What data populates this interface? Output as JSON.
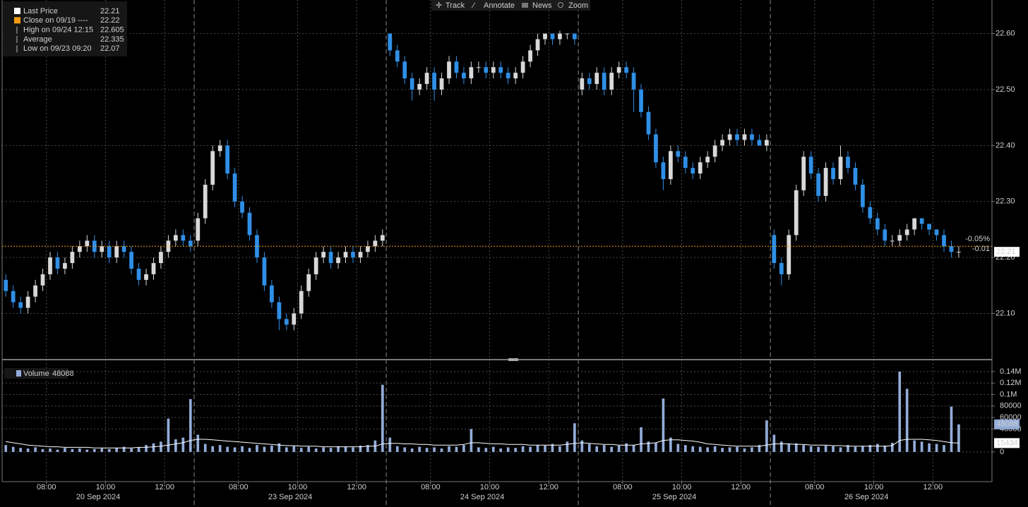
{
  "toolbar": {
    "items": [
      "Track",
      "Annotate",
      "News",
      "Zoom"
    ]
  },
  "chart_data": [
    {
      "type": "candlestick",
      "legend": [
        {
          "label": "Last Price",
          "value": 22.21,
          "color": "#ffffff"
        },
        {
          "label": "Close on 09/19 ----",
          "value": 22.22,
          "color": "#f39c12"
        },
        {
          "label": "High on 09/24 12:15",
          "value": 22.605,
          "color": "#bbbbbb"
        },
        {
          "label": "Average",
          "value": 22.335,
          "color": "#bbbbbb"
        },
        {
          "label": "Low on 09/23 09:20",
          "value": 22.07,
          "color": "#bbbbbb"
        }
      ],
      "annotations": [
        "-0.05%",
        "-0.01"
      ],
      "up_color": "#d8d8d8",
      "down_color": "#2f8fe6",
      "candles": [
        [
          22.16,
          22.17,
          22.13,
          22.14
        ],
        [
          22.14,
          22.15,
          22.11,
          22.12
        ],
        [
          22.12,
          22.13,
          22.1,
          22.11
        ],
        [
          22.11,
          22.14,
          22.1,
          22.13
        ],
        [
          22.13,
          22.16,
          22.12,
          22.15
        ],
        [
          22.15,
          22.18,
          22.14,
          22.17
        ],
        [
          22.17,
          22.21,
          22.16,
          22.2
        ],
        [
          22.2,
          22.21,
          22.17,
          22.18
        ],
        [
          22.18,
          22.2,
          22.17,
          22.19
        ],
        [
          22.19,
          22.22,
          22.18,
          22.21
        ],
        [
          22.21,
          22.23,
          22.2,
          22.22
        ],
        [
          22.22,
          22.24,
          22.21,
          22.23
        ],
        [
          22.23,
          22.24,
          22.2,
          22.21
        ],
        [
          22.21,
          22.23,
          22.2,
          22.22
        ],
        [
          22.22,
          22.23,
          22.19,
          22.2
        ],
        [
          22.2,
          22.23,
          22.19,
          22.22
        ],
        [
          22.22,
          22.23,
          22.2,
          22.21
        ],
        [
          22.21,
          22.22,
          22.17,
          22.18
        ],
        [
          22.18,
          22.19,
          22.15,
          22.16
        ],
        [
          22.16,
          22.18,
          22.15,
          22.17
        ],
        [
          22.17,
          22.2,
          22.16,
          22.19
        ],
        [
          22.19,
          22.22,
          22.18,
          22.21
        ],
        [
          22.21,
          22.24,
          22.2,
          22.23
        ],
        [
          22.23,
          22.25,
          22.22,
          22.24
        ],
        [
          22.24,
          22.25,
          22.22,
          22.23
        ],
        [
          22.23,
          22.24,
          22.21,
          22.22
        ],
        [
          22.23,
          22.28,
          22.22,
          22.27
        ],
        [
          22.27,
          22.34,
          22.26,
          22.33
        ],
        [
          22.33,
          22.4,
          22.32,
          22.39
        ],
        [
          22.39,
          22.41,
          22.38,
          22.4
        ],
        [
          22.4,
          22.41,
          22.34,
          22.35
        ],
        [
          22.35,
          22.36,
          22.29,
          22.3
        ],
        [
          22.3,
          22.31,
          22.27,
          22.28
        ],
        [
          22.28,
          22.29,
          22.23,
          22.24
        ],
        [
          22.24,
          22.25,
          22.19,
          22.2
        ],
        [
          22.2,
          22.21,
          22.14,
          22.15
        ],
        [
          22.15,
          22.16,
          22.11,
          22.12
        ],
        [
          22.12,
          22.13,
          22.07,
          22.09
        ],
        [
          22.09,
          22.1,
          22.07,
          22.08
        ],
        [
          22.08,
          22.11,
          22.07,
          22.1
        ],
        [
          22.1,
          22.15,
          22.09,
          22.14
        ],
        [
          22.14,
          22.18,
          22.13,
          22.17
        ],
        [
          22.17,
          22.21,
          22.16,
          22.2
        ],
        [
          22.2,
          22.22,
          22.19,
          22.21
        ],
        [
          22.21,
          22.22,
          22.18,
          22.19
        ],
        [
          22.19,
          22.21,
          22.18,
          22.2
        ],
        [
          22.2,
          22.22,
          22.19,
          22.21
        ],
        [
          22.21,
          22.22,
          22.19,
          22.2
        ],
        [
          22.2,
          22.22,
          22.19,
          22.21
        ],
        [
          22.21,
          22.23,
          22.2,
          22.22
        ],
        [
          22.22,
          22.24,
          22.21,
          22.23
        ],
        [
          22.23,
          22.25,
          22.22,
          22.24
        ],
        [
          22.6,
          22.6,
          22.56,
          22.57
        ],
        [
          22.57,
          22.58,
          22.54,
          22.55
        ],
        [
          22.55,
          22.56,
          22.51,
          22.52
        ],
        [
          22.52,
          22.53,
          22.48,
          22.5
        ],
        [
          22.5,
          22.52,
          22.49,
          22.51
        ],
        [
          22.51,
          22.54,
          22.5,
          22.53
        ],
        [
          22.53,
          22.54,
          22.48,
          22.5
        ],
        [
          22.5,
          22.53,
          22.49,
          22.52
        ],
        [
          22.52,
          22.56,
          22.51,
          22.55
        ],
        [
          22.55,
          22.56,
          22.52,
          22.53
        ],
        [
          22.53,
          22.54,
          22.51,
          22.52
        ],
        [
          22.52,
          22.55,
          22.51,
          22.54
        ],
        [
          22.54,
          22.55,
          22.53,
          22.54
        ],
        [
          22.54,
          22.55,
          22.52,
          22.53
        ],
        [
          22.53,
          22.55,
          22.52,
          22.54
        ],
        [
          22.54,
          22.55,
          22.52,
          22.53
        ],
        [
          22.53,
          22.54,
          22.51,
          22.52
        ],
        [
          22.52,
          22.54,
          22.51,
          22.53
        ],
        [
          22.53,
          22.56,
          22.52,
          22.55
        ],
        [
          22.55,
          22.58,
          22.54,
          22.57
        ],
        [
          22.57,
          22.6,
          22.56,
          22.59
        ],
        [
          22.59,
          22.6,
          22.58,
          22.6
        ],
        [
          22.6,
          22.6,
          22.58,
          22.59
        ],
        [
          22.59,
          22.605,
          22.58,
          22.6
        ],
        [
          22.6,
          22.6,
          22.59,
          22.6
        ],
        [
          22.6,
          22.6,
          22.58,
          22.59
        ],
        [
          22.5,
          22.53,
          22.49,
          22.52
        ],
        [
          22.52,
          22.53,
          22.5,
          22.51
        ],
        [
          22.51,
          22.54,
          22.5,
          22.53
        ],
        [
          22.53,
          22.54,
          22.49,
          22.5
        ],
        [
          22.5,
          22.54,
          22.49,
          22.53
        ],
        [
          22.53,
          22.55,
          22.52,
          22.54
        ],
        [
          22.54,
          22.55,
          22.52,
          22.53
        ],
        [
          22.53,
          22.54,
          22.46,
          22.5
        ],
        [
          22.5,
          22.51,
          22.45,
          22.46
        ],
        [
          22.46,
          22.47,
          22.41,
          22.42
        ],
        [
          22.42,
          22.43,
          22.36,
          22.37
        ],
        [
          22.37,
          22.38,
          22.32,
          22.34
        ],
        [
          22.34,
          22.4,
          22.33,
          22.39
        ],
        [
          22.39,
          22.4,
          22.37,
          22.38
        ],
        [
          22.38,
          22.39,
          22.35,
          22.36
        ],
        [
          22.36,
          22.37,
          22.34,
          22.35
        ],
        [
          22.35,
          22.38,
          22.34,
          22.37
        ],
        [
          22.37,
          22.39,
          22.36,
          22.38
        ],
        [
          22.38,
          22.41,
          22.37,
          22.4
        ],
        [
          22.4,
          22.42,
          22.39,
          22.41
        ],
        [
          22.41,
          22.43,
          22.4,
          22.42
        ],
        [
          22.42,
          22.43,
          22.4,
          22.41
        ],
        [
          22.41,
          22.43,
          22.4,
          22.42
        ],
        [
          22.42,
          22.43,
          22.4,
          22.41
        ],
        [
          22.41,
          22.42,
          22.4,
          22.4
        ],
        [
          22.4,
          22.42,
          22.39,
          22.41
        ],
        [
          22.24,
          22.25,
          22.18,
          22.19
        ],
        [
          22.19,
          22.2,
          22.15,
          22.17
        ],
        [
          22.17,
          22.25,
          22.16,
          22.24
        ],
        [
          22.24,
          22.33,
          22.23,
          22.32
        ],
        [
          22.32,
          22.39,
          22.31,
          22.38
        ],
        [
          22.38,
          22.39,
          22.34,
          22.35
        ],
        [
          22.35,
          22.36,
          22.3,
          22.31
        ],
        [
          22.31,
          22.37,
          22.3,
          22.36
        ],
        [
          22.36,
          22.37,
          22.33,
          22.34
        ],
        [
          22.34,
          22.4,
          22.33,
          22.38
        ],
        [
          22.38,
          22.39,
          22.35,
          22.36
        ],
        [
          22.36,
          22.37,
          22.32,
          22.33
        ],
        [
          22.33,
          22.34,
          22.28,
          22.29
        ],
        [
          22.29,
          22.3,
          22.26,
          22.27
        ],
        [
          22.27,
          22.28,
          22.24,
          22.25
        ],
        [
          22.25,
          22.26,
          22.22,
          22.23
        ],
        [
          22.23,
          22.24,
          22.22,
          22.23
        ],
        [
          22.23,
          22.25,
          22.22,
          22.24
        ],
        [
          22.24,
          22.26,
          22.23,
          22.25
        ],
        [
          22.25,
          22.27,
          22.24,
          22.27
        ],
        [
          22.27,
          22.27,
          22.25,
          22.26
        ],
        [
          22.26,
          22.26,
          22.24,
          22.25
        ],
        [
          22.25,
          22.25,
          22.23,
          22.24
        ],
        [
          22.24,
          22.25,
          22.21,
          22.22
        ],
        [
          22.22,
          22.23,
          22.2,
          22.21
        ],
        [
          22.21,
          22.22,
          22.2,
          22.21
        ]
      ],
      "xlim": [
        0,
        134
      ],
      "xticks": [
        {
          "value": 6,
          "label": "08:00"
        },
        {
          "value": 14,
          "label": "10:00"
        },
        {
          "value": 22,
          "label": "12:00"
        },
        {
          "value": 32,
          "label": "08:00"
        },
        {
          "value": 40,
          "label": "10:00"
        },
        {
          "value": 48,
          "label": "12:00"
        },
        {
          "value": 58,
          "label": "08:00"
        },
        {
          "value": 66,
          "label": "10:00"
        },
        {
          "value": 74,
          "label": "12:00"
        },
        {
          "value": 84,
          "label": "08:00"
        },
        {
          "value": 92,
          "label": "10:00"
        },
        {
          "value": 100,
          "label": "12:00"
        },
        {
          "value": 110,
          "label": "08:00"
        },
        {
          "value": 118,
          "label": "10:00"
        },
        {
          "value": 126,
          "label": "12:00"
        }
      ],
      "day_labels": [
        {
          "value": 13,
          "label": "20 Sep 2024"
        },
        {
          "value": 39,
          "label": "23 Sep 2024"
        },
        {
          "value": 65,
          "label": "24 Sep 2024"
        },
        {
          "value": 91,
          "label": "25 Sep 2024"
        },
        {
          "value": 117,
          "label": "26 Sep 2024"
        }
      ],
      "ylim": [
        22.02,
        22.66
      ],
      "yticks": [
        {
          "value": 22.1,
          "label": "22.10"
        },
        {
          "value": 22.2,
          "label": "22.20"
        },
        {
          "value": 22.3,
          "label": "22.30"
        },
        {
          "value": 22.4,
          "label": "22.40"
        },
        {
          "value": 22.5,
          "label": "22.50"
        },
        {
          "value": 22.6,
          "label": "22.60"
        }
      ],
      "grid": true
    },
    {
      "type": "bar",
      "name": "Volume",
      "color": "#93acd9",
      "average_color": "#ffffff",
      "values": [
        12000,
        9000,
        7000,
        6000,
        8000,
        5000,
        6000,
        4000,
        7000,
        5000,
        6000,
        4000,
        5000,
        6000,
        5000,
        7000,
        9000,
        6000,
        8000,
        12000,
        15000,
        18000,
        58000,
        22000,
        25000,
        92000,
        30000,
        14000,
        10000,
        12000,
        9000,
        8000,
        10000,
        7000,
        12000,
        9000,
        11000,
        15000,
        8000,
        10000,
        7000,
        9000,
        6000,
        8000,
        7000,
        10000,
        9000,
        8000,
        11000,
        12000,
        20000,
        117000,
        25000,
        10000,
        8000,
        6000,
        9000,
        7000,
        8000,
        6000,
        10000,
        9000,
        12000,
        40000,
        8000,
        7000,
        9000,
        6000,
        8000,
        7000,
        10000,
        9000,
        12000,
        11000,
        14000,
        10000,
        18000,
        50000,
        20000,
        14000,
        10000,
        12000,
        9000,
        11000,
        15000,
        12000,
        43000,
        18000,
        16000,
        93000,
        25000,
        14000,
        12000,
        10000,
        9000,
        8000,
        10000,
        7000,
        8000,
        9000,
        6000,
        8000,
        12000,
        55000,
        30000,
        18000,
        14000,
        15000,
        12000,
        10000,
        9000,
        11000,
        10000,
        8000,
        12000,
        9000,
        10000,
        12000,
        14000,
        11000,
        16000,
        140000,
        110000,
        20000,
        18000,
        15000,
        14000,
        12000,
        79000,
        48088
      ],
      "moving_average": [
        18000,
        16000,
        14000,
        12000,
        11000,
        10000,
        9000,
        9000,
        8000,
        8000,
        8000,
        8000,
        7000,
        7000,
        7000,
        7000,
        7000,
        7000,
        8000,
        8000,
        9000,
        10000,
        12000,
        14000,
        16000,
        20000,
        22000,
        22000,
        21000,
        20000,
        19000,
        18000,
        17000,
        16000,
        15000,
        14000,
        13000,
        12000,
        11000,
        11000,
        10000,
        10000,
        10000,
        9000,
        9000,
        9000,
        9000,
        9000,
        9000,
        10000,
        10000,
        14000,
        15000,
        15000,
        14000,
        14000,
        13000,
        13000,
        12000,
        12000,
        12000,
        12000,
        13000,
        16000,
        16000,
        15000,
        14000,
        14000,
        13000,
        13000,
        13000,
        12000,
        12000,
        12000,
        12000,
        12000,
        13000,
        15000,
        16000,
        15000,
        14000,
        13000,
        13000,
        12000,
        12000,
        12000,
        14000,
        15000,
        16000,
        20000,
        21000,
        21000,
        20000,
        19000,
        17000,
        14000,
        13000,
        12000,
        11000,
        10000,
        10000,
        10000,
        10000,
        12000,
        14000,
        14000,
        14000,
        13000,
        13000,
        12000,
        12000,
        12000,
        11000,
        11000,
        10000,
        10000,
        10000,
        10000,
        10000,
        10000,
        11000,
        20000,
        22000,
        22000,
        22000,
        21000,
        20000,
        18000,
        16000,
        15434
      ],
      "ylim": [
        -48000,
        151000
      ],
      "yticks": [
        0,
        40000,
        60000,
        80000,
        {
          "value": 100000,
          "label": "0.1M"
        },
        {
          "value": 120000,
          "label": "0.12M"
        },
        {
          "value": 140000,
          "label": "0.14M"
        }
      ],
      "grid": true
    }
  ]
}
